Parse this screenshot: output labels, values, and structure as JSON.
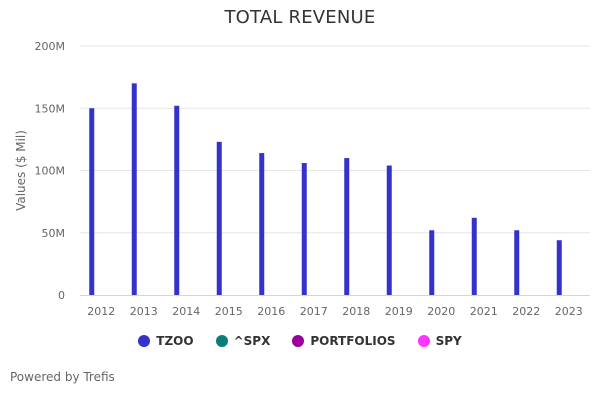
{
  "footer": "Powered by Trefis",
  "legend": [
    {
      "name": "TZOO",
      "color": "#3333cc"
    },
    {
      "name": "^SPX",
      "color": "#0a7d7a"
    },
    {
      "name": "PORTFOLIOS",
      "color": "#990099"
    },
    {
      "name": "SPY",
      "color": "#ff33ff"
    }
  ],
  "chart_data": {
    "type": "bar",
    "title": "TOTAL REVENUE",
    "xlabel": "",
    "ylabel": "Values ($ Mil)",
    "ylim": [
      0,
      200
    ],
    "yticks": [
      0,
      50,
      100,
      150,
      200
    ],
    "ytick_labels": [
      "0",
      "50M",
      "100M",
      "150M",
      "200M"
    ],
    "grid": true,
    "legend_position": "bottom",
    "categories": [
      "2012",
      "2013",
      "2014",
      "2015",
      "2016",
      "2017",
      "2018",
      "2019",
      "2020",
      "2021",
      "2022",
      "2023"
    ],
    "series": [
      {
        "name": "TZOO",
        "color": "#3333cc",
        "values": [
          150,
          170,
          152,
          123,
          114,
          106,
          110,
          104,
          52,
          62,
          52,
          44
        ]
      },
      {
        "name": "^SPX",
        "color": "#0a7d7a",
        "values": []
      },
      {
        "name": "PORTFOLIOS",
        "color": "#990099",
        "values": []
      },
      {
        "name": "SPY",
        "color": "#ff33ff",
        "values": []
      }
    ]
  }
}
